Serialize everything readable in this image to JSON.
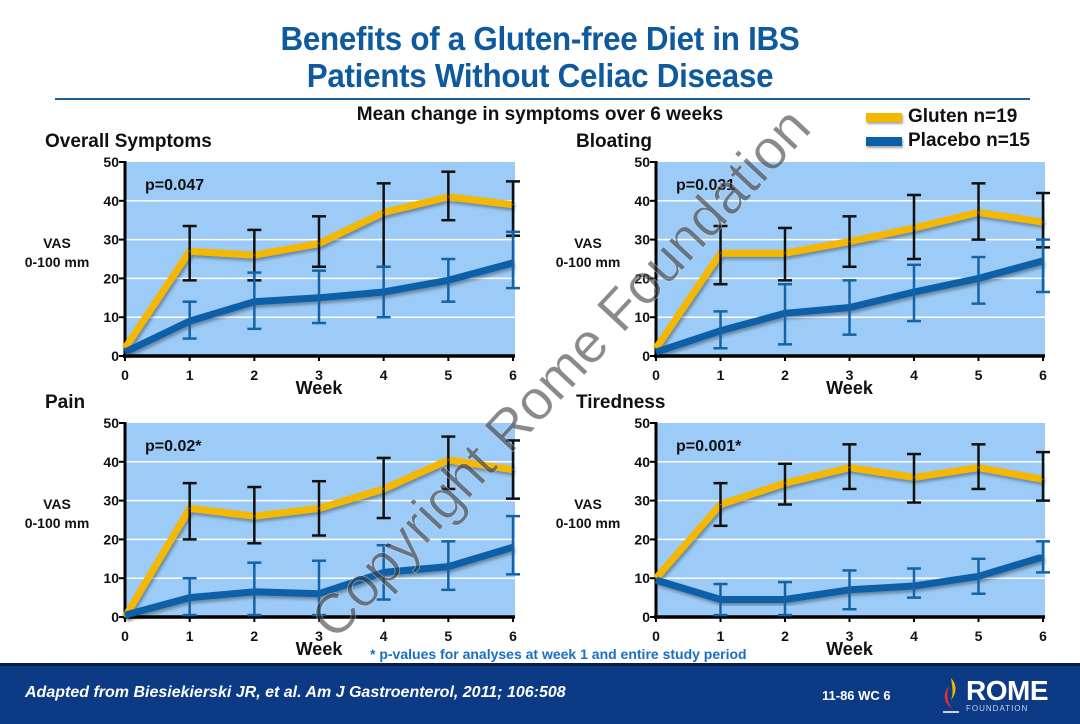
{
  "header": {
    "title_line1": "Benefits of a Gluten-free Diet in IBS",
    "title_line2": "Patients Without Celiac Disease",
    "subtitle": "Mean change in symptoms over 6 weeks"
  },
  "legend": [
    {
      "label": "Gluten n=19",
      "color": "#f5b800"
    },
    {
      "label": "Placebo n=15",
      "color": "#0b5ea8"
    }
  ],
  "footnote": "* p-values for analyses at week 1 and entire study period",
  "footer": {
    "citation": "Adapted from Biesiekierski JR, et al. Am J Gastroenterol, 2011; 106:508",
    "code": "11-86   WC 6",
    "logo_main": "ROME",
    "logo_sub": "FOUNDATION"
  },
  "watermark": "Copyright Rome Foundation",
  "colors": {
    "plot_bg": "#9dcbf7",
    "gluten": "#f5b800",
    "placebo": "#0b5ea8",
    "gluten_error": "#111111",
    "placebo_error": "#1463a6",
    "title": "#0f5a9e"
  },
  "chart_data": [
    {
      "type": "line",
      "title": "Overall Symptoms",
      "annotation": "p=0.047",
      "xlabel": "Week",
      "ylabel": "VAS\n0-100 mm",
      "ylabel_line1": "VAS",
      "ylabel_line2": "0-100 mm",
      "x": [
        0,
        1,
        2,
        3,
        4,
        5,
        6
      ],
      "xticks": [
        "0",
        "1",
        "2",
        "3",
        "4",
        "5",
        "6"
      ],
      "yticks": [
        "0",
        "10",
        "20",
        "30",
        "40",
        "50"
      ],
      "ylim": [
        0,
        50
      ],
      "grid": true,
      "series": [
        {
          "name": "Gluten n=19",
          "values": [
            2,
            27,
            26,
            29,
            37,
            41,
            39
          ],
          "error_low": [
            null,
            19.5,
            19.5,
            23,
            23,
            35,
            31
          ],
          "error_high": [
            null,
            33.5,
            32.5,
            36,
            44.5,
            47.5,
            45
          ]
        },
        {
          "name": "Placebo n=15",
          "values": [
            1,
            9,
            14,
            15,
            16.5,
            19.5,
            24
          ],
          "error_low": [
            null,
            4.5,
            7,
            8.5,
            10,
            14,
            17.5
          ],
          "error_high": [
            null,
            14,
            21.5,
            22,
            23,
            25,
            32
          ]
        }
      ]
    },
    {
      "type": "line",
      "title": "Bloating",
      "annotation": "p=0.031",
      "xlabel": "Week",
      "ylabel_line1": "VAS",
      "ylabel_line2": "0-100 mm",
      "x": [
        0,
        1,
        2,
        3,
        4,
        5,
        6
      ],
      "xticks": [
        "0",
        "1",
        "2",
        "3",
        "4",
        "5",
        "6"
      ],
      "yticks": [
        "0",
        "10",
        "20",
        "30",
        "40",
        "50"
      ],
      "ylim": [
        0,
        50
      ],
      "grid": true,
      "series": [
        {
          "name": "Gluten n=19",
          "values": [
            2,
            26.5,
            26.5,
            29.5,
            33,
            37,
            34.5
          ],
          "error_low": [
            null,
            18.5,
            19.5,
            23,
            25,
            30,
            28
          ],
          "error_high": [
            null,
            33.5,
            33,
            36,
            41.5,
            44.5,
            42
          ]
        },
        {
          "name": "Placebo n=15",
          "values": [
            1,
            6.5,
            11,
            12.5,
            16.5,
            20,
            24.5
          ],
          "error_low": [
            null,
            2,
            3,
            5.5,
            9,
            13.5,
            16.5
          ],
          "error_high": [
            null,
            11.5,
            18.5,
            19.5,
            23.5,
            25.5,
            30
          ]
        }
      ]
    },
    {
      "type": "line",
      "title": "Pain",
      "annotation": "p=0.02*",
      "xlabel": "Week",
      "ylabel_line1": "VAS",
      "ylabel_line2": "0-100 mm",
      "x": [
        0,
        1,
        2,
        3,
        4,
        5,
        6
      ],
      "xticks": [
        "0",
        "1",
        "2",
        "3",
        "4",
        "5",
        "6"
      ],
      "yticks": [
        "0",
        "10",
        "20",
        "30",
        "40",
        "50"
      ],
      "ylim": [
        0,
        50
      ],
      "grid": true,
      "series": [
        {
          "name": "Gluten n=19",
          "values": [
            0,
            28,
            26,
            28,
            33,
            40.5,
            38
          ],
          "error_low": [
            null,
            20,
            19,
            21,
            25.5,
            33,
            30.5
          ],
          "error_high": [
            null,
            34.5,
            33.5,
            35,
            41,
            46.5,
            45.5
          ]
        },
        {
          "name": "Placebo n=15",
          "values": [
            0.5,
            5,
            6.5,
            6,
            11.5,
            13,
            18
          ],
          "error_low": [
            null,
            0.5,
            0.5,
            0.5,
            4.5,
            7,
            11
          ],
          "error_high": [
            null,
            10,
            14,
            14.5,
            18.5,
            19.5,
            26
          ]
        }
      ]
    },
    {
      "type": "line",
      "title": "Tiredness",
      "annotation": "p=0.001*",
      "xlabel": "Week",
      "ylabel_line1": "VAS",
      "ylabel_line2": "0-100 mm",
      "x": [
        0,
        1,
        2,
        3,
        4,
        5,
        6
      ],
      "xticks": [
        "0",
        "1",
        "2",
        "3",
        "4",
        "5",
        "6"
      ],
      "yticks": [
        "0",
        "10",
        "20",
        "30",
        "40",
        "50"
      ],
      "ylim": [
        0,
        50
      ],
      "grid": true,
      "series": [
        {
          "name": "Gluten n=19",
          "values": [
            10,
            29,
            34.5,
            38.5,
            36,
            38.5,
            35.5
          ],
          "error_low": [
            null,
            23.5,
            29,
            33,
            29.5,
            33,
            30
          ],
          "error_high": [
            null,
            34.5,
            39.5,
            44.5,
            42,
            44.5,
            42.5
          ]
        },
        {
          "name": "Placebo n=15",
          "values": [
            9.5,
            4.5,
            4.5,
            7,
            8,
            10.5,
            15.5
          ],
          "error_low": [
            null,
            0.5,
            0.5,
            2,
            5,
            6,
            11.5
          ],
          "error_high": [
            null,
            8.5,
            9,
            12,
            12.5,
            15,
            19.5
          ]
        }
      ]
    }
  ]
}
